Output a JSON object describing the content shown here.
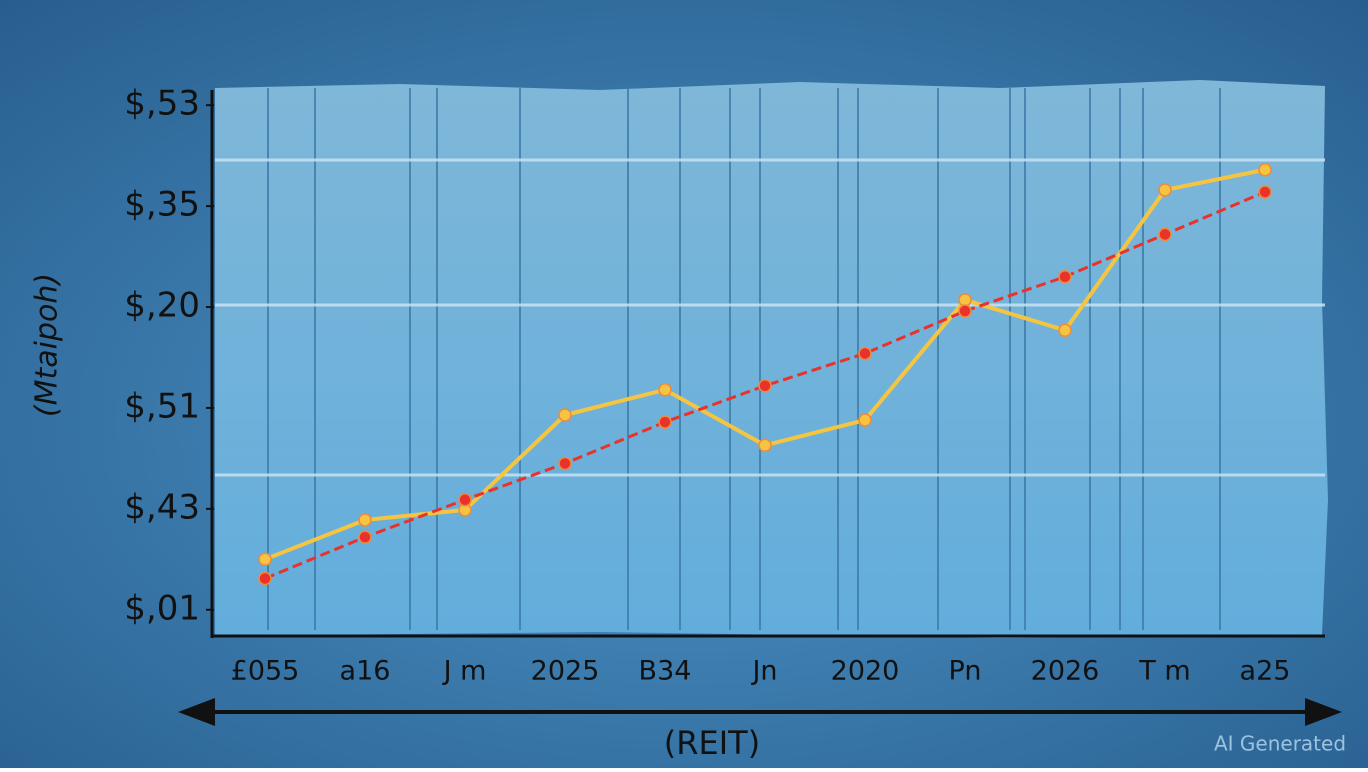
{
  "chart_data": {
    "type": "line",
    "y_label": "(Mtaipoh)",
    "x_label": "(REIT)",
    "watermark": "AI Generated",
    "categories": [
      "£055",
      "a16",
      "J m",
      "2025",
      "B34",
      "Jn",
      "2020",
      "Pn",
      "2026",
      "T m",
      "a25"
    ],
    "series": [
      {
        "color": "#f5c542",
        "values": [
          0.5,
          0.89,
          0.99,
          1.93,
          2.18,
          1.63,
          1.88,
          3.07,
          2.77,
          4.16,
          4.36
        ]
      },
      {
        "color": "#e8322b",
        "values": [
          0.31,
          0.72,
          1.09,
          1.45,
          1.86,
          2.22,
          2.54,
          2.96,
          3.3,
          3.72,
          4.14
        ]
      }
    ],
    "ylim": [
      -0.25,
      5.2
    ],
    "yticks": [
      {
        "value": 0,
        "label": "$,01"
      },
      {
        "value": 1,
        "label": "$,43"
      },
      {
        "value": 2,
        "label": "$,51"
      },
      {
        "value": 3,
        "label": "$,20"
      },
      {
        "value": 4,
        "label": "$,35"
      },
      {
        "value": 5,
        "label": "$,53"
      }
    ]
  }
}
